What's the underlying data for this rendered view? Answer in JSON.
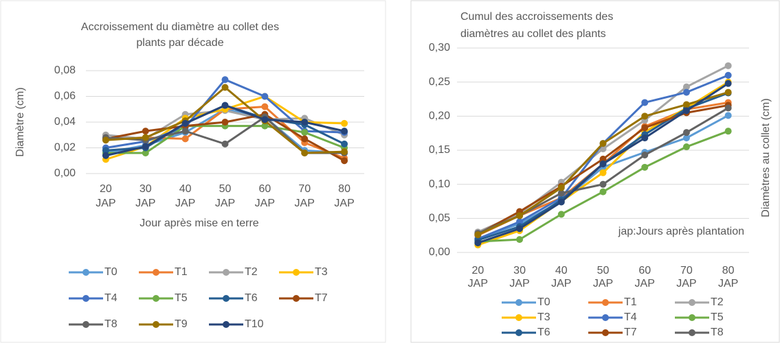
{
  "chart_data": [
    {
      "type": "line",
      "title": [
        "Accroissement du diamètre au collet des",
        "plants par décade"
      ],
      "x_label": "Jour après mise en terre",
      "y_label": "Diamètre (cm)",
      "categories": [
        "20 JAP",
        "30 JAP",
        "40 JAP",
        "50 JAP",
        "60 JAP",
        "70 JAP",
        "80 JAP"
      ],
      "ylim": [
        0,
        0.08
      ],
      "yticks": [
        {
          "value": 0,
          "label": "0,00"
        },
        {
          "value": 0.02,
          "label": "0,02"
        },
        {
          "value": 0.04,
          "label": "0,04"
        },
        {
          "value": 0.06,
          "label": "0,06"
        },
        {
          "value": 0.08,
          "label": "0,08"
        }
      ],
      "grid": true,
      "legend": "bottom",
      "series": [
        {
          "name": "T0",
          "color": "#5b9bd5",
          "values": [
            0.016,
            0.022,
            0.032,
            0.05,
            0.044,
            0.018,
            0.016
          ]
        },
        {
          "name": "T1",
          "color": "#ed7d31",
          "values": [
            0.027,
            0.028,
            0.027,
            0.05,
            0.052,
            0.024,
            0.012
          ]
        },
        {
          "name": "T2",
          "color": "#a5a5a5",
          "values": [
            0.03,
            0.027,
            0.046,
            0.049,
            0.042,
            0.043,
            0.03
          ]
        },
        {
          "name": "T3",
          "color": "#ffc000",
          "values": [
            0.011,
            0.021,
            0.043,
            0.05,
            0.06,
            0.04,
            0.039
          ]
        },
        {
          "name": "T4",
          "color": "#4472c4",
          "values": [
            0.02,
            0.025,
            0.036,
            0.073,
            0.06,
            0.033,
            0.032
          ]
        },
        {
          "name": "T5",
          "color": "#70ad47",
          "values": [
            0.016,
            0.016,
            0.037,
            0.037,
            0.037,
            0.032,
            0.02
          ]
        },
        {
          "name": "T6",
          "color": "#255e91",
          "values": [
            0.018,
            0.02,
            0.039,
            0.053,
            0.043,
            0.038,
            0.023
          ]
        },
        {
          "name": "T7",
          "color": "#9e480e",
          "values": [
            0.027,
            0.033,
            0.037,
            0.04,
            0.046,
            0.027,
            0.01
          ]
        },
        {
          "name": "T8",
          "color": "#636363",
          "values": [
            0.028,
            0.026,
            0.033,
            0.023,
            0.044,
            0.016,
            0.016
          ]
        },
        {
          "name": "T9",
          "color": "#997300",
          "values": [
            0.026,
            0.028,
            0.041,
            0.067,
            0.041,
            0.016,
            0.017
          ]
        },
        {
          "name": "T10",
          "color": "#264478",
          "values": [
            0.014,
            0.021,
            0.039,
            0.053,
            0.042,
            0.04,
            0.033
          ]
        }
      ]
    },
    {
      "type": "line",
      "title": [
        "Cumul des accroissements des",
        "diamètres au collet des plants"
      ],
      "y_label": "Diamètres au collet (cm)",
      "annotation": "jap:Jours après plantation",
      "categories": [
        "20 JAP",
        "30 JAP",
        "40 JAP",
        "50 JAP",
        "60 JAP",
        "70 JAP",
        "80 JAP"
      ],
      "ylim": [
        0,
        0.3
      ],
      "yticks": [
        {
          "value": 0,
          "label": "0,00"
        },
        {
          "value": 0.05,
          "label": "0,05"
        },
        {
          "value": 0.1,
          "label": "0,10"
        },
        {
          "value": 0.15,
          "label": "0,15"
        },
        {
          "value": 0.2,
          "label": "0,20"
        },
        {
          "value": 0.25,
          "label": "0,25"
        },
        {
          "value": 0.3,
          "label": "0,30"
        }
      ],
      "grid": true,
      "legend": "bottom",
      "series": [
        {
          "name": "T0",
          "color": "#5b9bd5",
          "values": [
            0.02,
            0.042,
            0.075,
            0.125,
            0.147,
            0.168,
            0.201
          ]
        },
        {
          "name": "T1",
          "color": "#ed7d31",
          "values": [
            0.025,
            0.054,
            0.08,
            0.13,
            0.185,
            0.21,
            0.22
          ]
        },
        {
          "name": "T2",
          "color": "#a5a5a5",
          "values": [
            0.03,
            0.057,
            0.103,
            0.152,
            0.194,
            0.243,
            0.274
          ]
        },
        {
          "name": "T3",
          "color": "#ffc000",
          "values": [
            0.011,
            0.032,
            0.075,
            0.117,
            0.177,
            0.212,
            0.25
          ]
        },
        {
          "name": "T4",
          "color": "#4472c4",
          "values": [
            0.02,
            0.045,
            0.08,
            0.16,
            0.22,
            0.235,
            0.26
          ]
        },
        {
          "name": "T5",
          "color": "#70ad47",
          "values": [
            0.016,
            0.019,
            0.056,
            0.089,
            0.125,
            0.155,
            0.178
          ]
        },
        {
          "name": "T6",
          "color": "#255e91",
          "values": [
            0.018,
            0.038,
            0.077,
            0.13,
            0.173,
            0.211,
            0.234
          ]
        },
        {
          "name": "T7",
          "color": "#9e480e",
          "values": [
            0.027,
            0.06,
            0.097,
            0.137,
            0.183,
            0.205,
            0.216
          ]
        },
        {
          "name": "T8",
          "color": "#636363",
          "values": [
            0.028,
            0.054,
            0.087,
            0.1,
            0.143,
            0.176,
            0.212
          ]
        },
        {
          "color": "#997300",
          "values": [
            0.026,
            0.054,
            0.095,
            0.16,
            0.2,
            0.217,
            0.235
          ]
        },
        {
          "color": "#264478",
          "values": [
            0.014,
            0.035,
            0.074,
            0.13,
            0.168,
            0.208,
            0.248
          ]
        }
      ]
    }
  ]
}
